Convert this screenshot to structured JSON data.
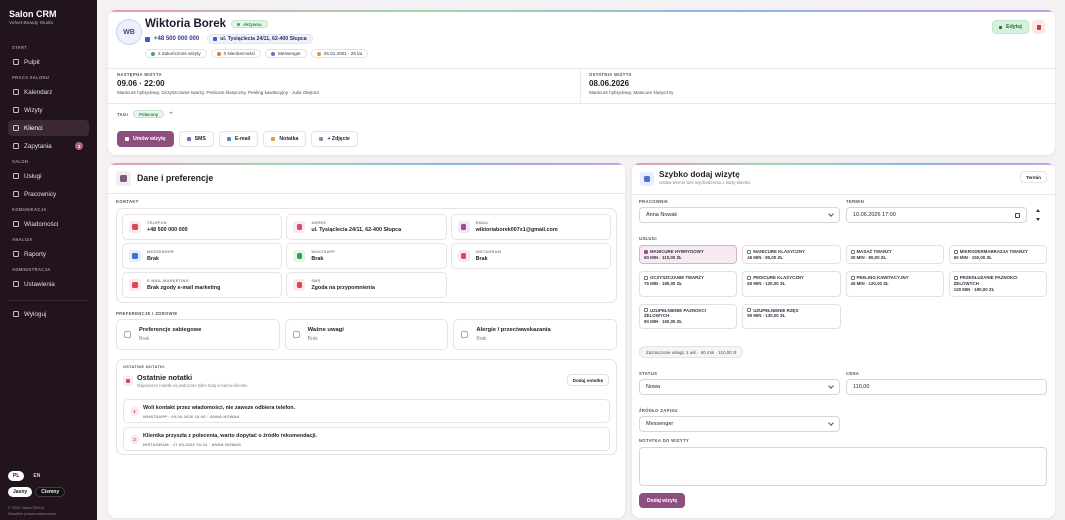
{
  "sidebar": {
    "brand": "Salon CRM",
    "studio": "Velvet Beauty Studio",
    "sections": [
      {
        "heading": "START",
        "items": [
          {
            "label": "Pulpit"
          }
        ]
      },
      {
        "heading": "PRACA SALONU",
        "items": [
          {
            "label": "Kalendarz"
          },
          {
            "label": "Wizyty"
          },
          {
            "label": "Klienci",
            "active": true
          },
          {
            "label": "Zapytania",
            "badge": 3
          }
        ]
      },
      {
        "heading": "SALON",
        "items": [
          {
            "label": "Usługi"
          },
          {
            "label": "Pracownicy"
          }
        ]
      },
      {
        "heading": "KOMUNIKACJA",
        "items": [
          {
            "label": "Wiadomości"
          }
        ]
      },
      {
        "heading": "ANALIZA",
        "items": [
          {
            "label": "Raporty"
          }
        ]
      },
      {
        "heading": "ADMINISTRACJA",
        "items": [
          {
            "label": "Ustawienia"
          }
        ]
      }
    ],
    "logout": "Wyloguj",
    "languages": [
      "PL",
      "EN"
    ],
    "themes": [
      "Jasny",
      "Ciemny"
    ],
    "footer": [
      "© 2026 SalonCRM.pl",
      "Wszelkie prawa zastrzeżone"
    ]
  },
  "client": {
    "initials": "WB",
    "name": "Wiktoria Borek",
    "status": "Aktywna",
    "phone": "+48 500 000 000",
    "address": "ul. Tysiąclecia 24/11, 62-400 Słupca",
    "chips": [
      "2 Zakończone wizyty",
      "0 Nieobecności",
      "Messenger",
      "25.01.2001 · 25 lat"
    ],
    "edit": "Edytuj"
  },
  "next_visit": {
    "label": "NASTĘPNA WIZYTA",
    "date": "09.06 · 22:00",
    "details": "Manicure hybrydowy, Oczyszczanie twarzy, Pedicure klasyczny, Peeling kawitacyjny · Julia Olejnicz"
  },
  "last_visit": {
    "label": "OSTATNIA WIZYTA",
    "date": "08.06.2026",
    "details": "Manicure hybrydowy, Manicure klasyczny"
  },
  "tags": {
    "label": "TAGI",
    "items": [
      "Polecony"
    ],
    "add": "+"
  },
  "actions": [
    "Umów wizytę",
    "SMS",
    "E-mail",
    "Notatka",
    "+ Zdjęcie"
  ],
  "details": {
    "title": "Dane i preferencje",
    "contact_heading": "KONTAKT",
    "contact": [
      {
        "label": "TELEFON",
        "value": "+48 500 000 000"
      },
      {
        "label": "ADRES",
        "value": "ul. Tysiąclecia 24/11, 62-400 Słupca"
      },
      {
        "label": "EMAIL",
        "value": "wiktoriaborek007x1@gmail.com"
      },
      {
        "label": "MESSENGER",
        "value": "Brak"
      },
      {
        "label": "WHATSAPP",
        "value": "Brak"
      },
      {
        "label": "INSTAGRAM",
        "value": "Brak"
      },
      {
        "label": "E-MAIL MARKETING",
        "value": "Brak zgody e-mail marketing"
      },
      {
        "label": "SMS",
        "value": "Zgoda na przypomnienia"
      }
    ],
    "preferences_heading": "PREFERENCJE I ZDROWIE",
    "preferences": [
      {
        "title": "Preferencje zabiegowe",
        "value": "Brak"
      },
      {
        "title": "Ważne uwagi",
        "value": "Brak"
      },
      {
        "title": "Alergie / przeciwwskazania",
        "value": "Brak"
      }
    ],
    "notes": {
      "heading": "OSTATNIE NOTATKI",
      "title": "Ostatnie notatki",
      "subtitle": "Najnowsze notatki są widoczne tylko tutaj w karcie klienta.",
      "add": "Dodaj notatkę",
      "items": [
        {
          "number": 1,
          "text": "Woli kontakt przez wiadomości, nie zawsze odbiera telefon.",
          "meta": "WHATSAPP · 06.06.2026 18:46 · ANNA NOWAK"
        },
        {
          "number": 2,
          "text": "Klientka przyszła z polecenia, warto dopytać o źródło rekomendacji.",
          "meta": "INSTAGRAM · 17.05.2026 10:41 · ANNA NOWAK"
        }
      ]
    }
  },
  "quick": {
    "title": "Szybko dodaj wizytę",
    "subtitle": "Ustaw termin bez wychodzenia z karty klienta.",
    "button": "Termin",
    "employee": {
      "label": "PRACOWNIK",
      "value": "Anna Nowak"
    },
    "date": {
      "label": "TERMIN",
      "value": "10.06.2026 17:00"
    },
    "services": {
      "label": "USŁUGI",
      "items": [
        {
          "name": "MANICURE HYBRYDOWY",
          "meta": "60 MIN · 110,00 ZŁ",
          "checked": true
        },
        {
          "name": "MANICURE KLASYCZNY",
          "meta": "45 MIN · 80,00 ZŁ"
        },
        {
          "name": "MASAŻ TWARZY",
          "meta": "30 MIN · 80,00 ZŁ"
        },
        {
          "name": "MIKRODERMABRAZJA TWARZY",
          "meta": "60 MIN · 150,00 ZŁ"
        },
        {
          "name": "OCZYSZCZANIE TWARZY",
          "meta": "75 MIN · 180,00 ZŁ"
        },
        {
          "name": "PEDICURE KLASYCZNY",
          "meta": "60 MIN · 120,00 ZŁ"
        },
        {
          "name": "PEELING KAWITACYJNY",
          "meta": "45 MIN · 120,00 ZŁ"
        },
        {
          "name": "PRZEDŁUŻANIE PAZNOKCI ŻELOWYCH",
          "meta": "120 MIN · 190,00 ZŁ"
        },
        {
          "name": "UZUPEŁNIENIE PAZNOKCI ŻELOWYCH",
          "meta": "90 MIN · 150,00 ZŁ"
        },
        {
          "name": "UZUPEŁNIENIE RZĘS",
          "meta": "90 MIN · 130,00 ZŁ"
        }
      ]
    },
    "summary": "Zaznaczone usługi: 1 usł. · 60 min · 110,00 zł",
    "status": {
      "label": "STATUS",
      "value": "Nowa"
    },
    "price": {
      "label": "CENA",
      "value": "110,00"
    },
    "source": {
      "label": "ŹRÓDŁO ZAPISU",
      "value": "Messenger"
    },
    "note": {
      "label": "NOTATKA DO WIZYTY"
    },
    "submit": "Dodaj wizytę"
  }
}
